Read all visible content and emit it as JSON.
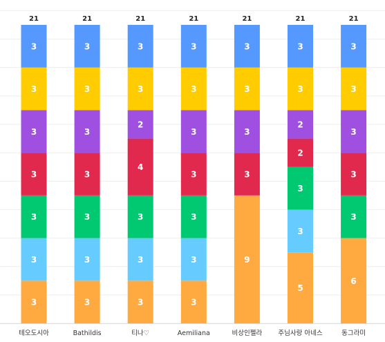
{
  "chart_data": {
    "type": "bar",
    "stacked": true,
    "categories": [
      "테오도시아",
      "Bathildis",
      "티나♡",
      "Aemiliana",
      "비상인펠라",
      "주님사랑 아네스",
      "동그라미"
    ],
    "totals": [
      21,
      21,
      21,
      21,
      21,
      21,
      21
    ],
    "ylim": [
      0,
      21
    ],
    "grid": true,
    "legend": "none",
    "series": [
      {
        "color": "#FFAA40",
        "values": [
          3,
          3,
          3,
          3,
          9,
          5,
          6
        ]
      },
      {
        "color": "#66CCFF",
        "values": [
          3,
          3,
          3,
          3,
          0,
          3,
          0
        ]
      },
      {
        "color": "#00C971",
        "values": [
          3,
          3,
          3,
          3,
          0,
          3,
          3
        ]
      },
      {
        "color": "#E0294C",
        "values": [
          3,
          3,
          4,
          3,
          3,
          2,
          3
        ]
      },
      {
        "color": "#A050E0",
        "values": [
          3,
          3,
          2,
          3,
          3,
          2,
          3
        ]
      },
      {
        "color": "#FFCC00",
        "values": [
          3,
          3,
          3,
          3,
          3,
          3,
          3
        ]
      },
      {
        "color": "#5599FF",
        "values": [
          3,
          3,
          3,
          3,
          3,
          3,
          3
        ]
      }
    ]
  }
}
